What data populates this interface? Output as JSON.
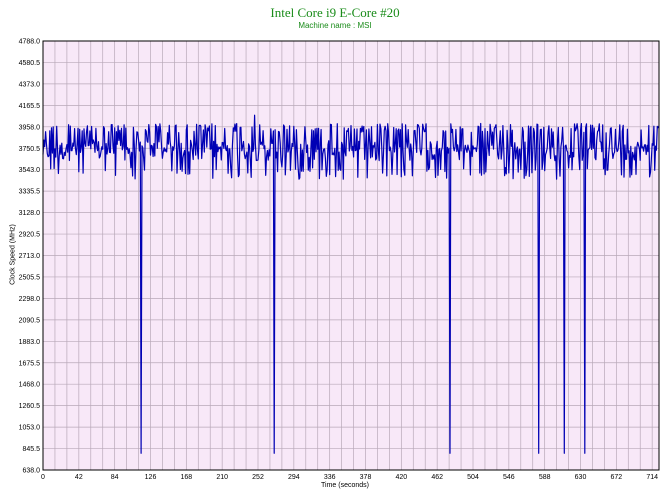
{
  "chart_data": {
    "type": "line",
    "title": "Intel Core i9 E-Core #20",
    "subtitle": "Machine name : MSI",
    "xlabel": "Time (seconds)",
    "ylabel": "Clock Speed (MHz)",
    "xlim": [
      0,
      722
    ],
    "ylim": [
      638.0,
      4788.0
    ],
    "x_ticks": [
      "0",
      "42",
      "84",
      "126",
      "168",
      "210",
      "252",
      "294",
      "336",
      "378",
      "420",
      "462",
      "504",
      "546",
      "588",
      "630",
      "672",
      "714"
    ],
    "y_ticks": [
      "638.0",
      "845.5",
      "1053.0",
      "1260.5",
      "1468.0",
      "1675.5",
      "1883.0",
      "2090.5",
      "2298.0",
      "2505.5",
      "2713.0",
      "2920.5",
      "3128.0",
      "3335.5",
      "3543.0",
      "3750.5",
      "3958.0",
      "4165.5",
      "4373.0",
      "4580.5",
      "4788.0"
    ],
    "grid": true,
    "series": [
      {
        "baseline_mhz": 3750.5,
        "noise_low_mhz": 3450,
        "noise_high_mhz": 3990,
        "peak": {
          "x": 248,
          "y": 4070
        },
        "dips": [
          {
            "x": 115,
            "y": 800
          },
          {
            "x": 271,
            "y": 800
          },
          {
            "x": 477,
            "y": 800
          },
          {
            "x": 581,
            "y": 800
          },
          {
            "x": 611,
            "y": 800
          },
          {
            "x": 635,
            "y": 800
          }
        ]
      }
    ],
    "colors": {
      "line": "#0000b4",
      "plot_bg": "#f8e8f8",
      "grid": "#b8a8b8",
      "title": "#1a8c1a"
    }
  }
}
